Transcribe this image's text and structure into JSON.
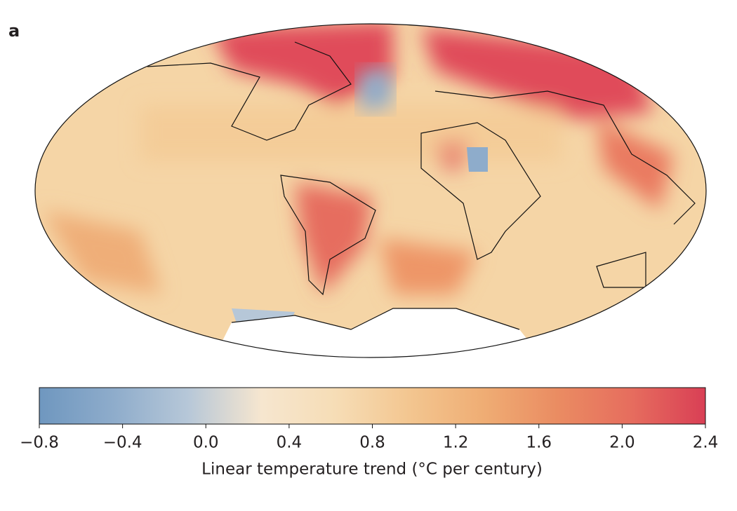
{
  "panel_label": "a",
  "colorbar": {
    "label": "Linear temperature trend (°C per century)",
    "lim": [
      -0.8,
      2.4
    ],
    "ticks": [
      {
        "value": -0.8,
        "label": "−0.8"
      },
      {
        "value": -0.4,
        "label": "−0.4"
      },
      {
        "value": 0,
        "label": "0.0"
      },
      0.4,
      0.8,
      1.2,
      1.6,
      {
        "value": 2,
        "label": "2.0"
      },
      2.4
    ],
    "colors": [
      "#6f97bf",
      "#8eaccb",
      "#b6c7d8",
      "#f6e6cf",
      "#f6ddb6",
      "#f3c690",
      "#efad74",
      "#ea8c62",
      "#e66d5e",
      "#d93f55"
    ]
  }
}
